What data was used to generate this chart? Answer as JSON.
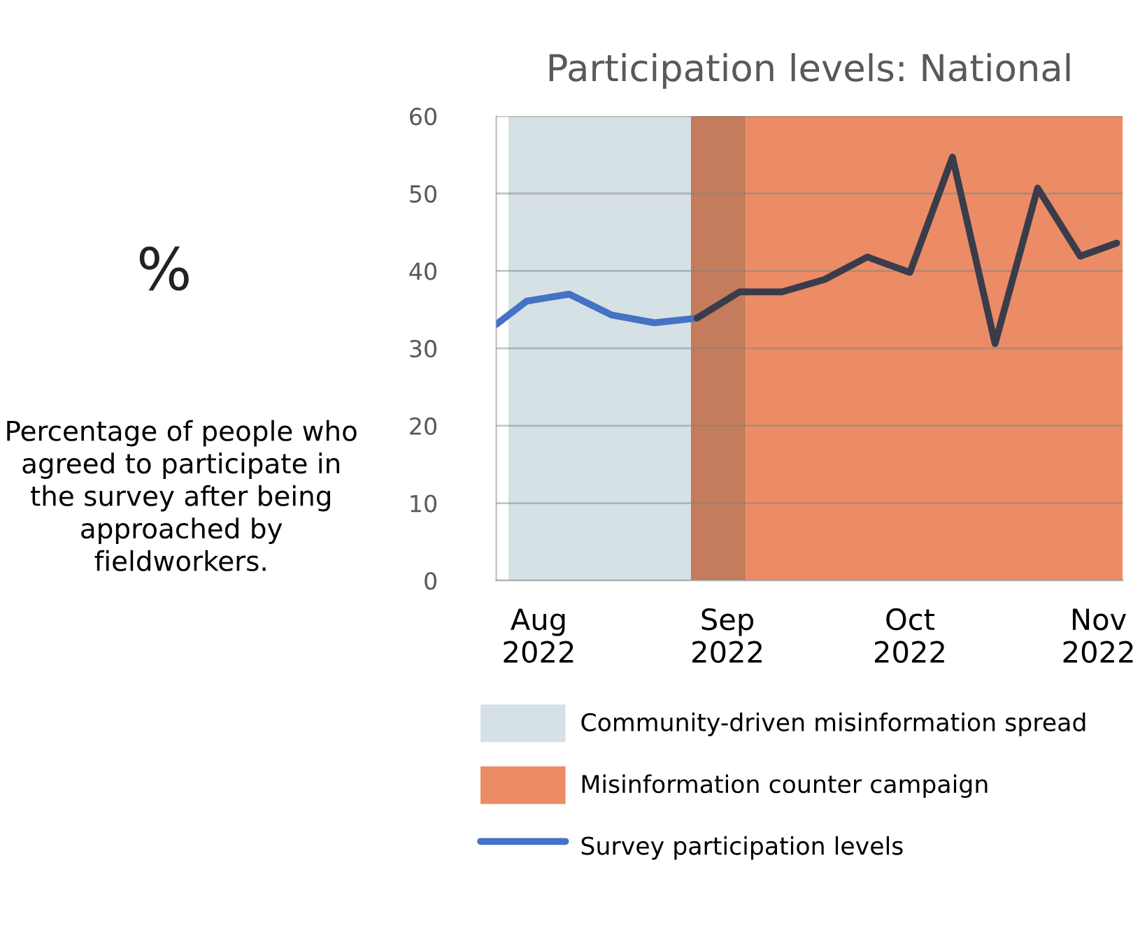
{
  "chart_data": {
    "type": "line",
    "title": "Participation levels: National",
    "ylabel": "%",
    "annotations": [
      "Percentage of people who agreed to participate in the survey after being approached by fieldworkers."
    ],
    "series": [
      {
        "name": "Survey participation levels",
        "color": "#4472c4",
        "x": [
          "2022-07-25",
          "2022-07-30",
          "2022-08-06",
          "2022-08-13",
          "2022-08-20",
          "2022-08-27"
        ],
        "values": [
          33.1,
          36.1,
          37.0,
          34.3,
          33.3,
          33.9
        ]
      },
      {
        "color": "#3a3c4a",
        "x": [
          "2022-08-27",
          "2022-09-03",
          "2022-09-10",
          "2022-09-17",
          "2022-09-24",
          "2022-10-01",
          "2022-10-08",
          "2022-10-15",
          "2022-10-22",
          "2022-10-29",
          "2022-11-04"
        ],
        "values": [
          33.9,
          37.3,
          37.3,
          38.9,
          41.8,
          39.8,
          54.7,
          30.6,
          50.7,
          41.9,
          43.6
        ]
      }
    ],
    "bands": [
      {
        "axis": "x",
        "from": "2022-07-27",
        "to": "2022-08-26",
        "label": "Community-driven misinformation spread",
        "color": "#d6e1e5"
      },
      {
        "axis": "x",
        "from": "2022-09-04",
        "to": "2022-11-05",
        "label": "Misinformation counter campaign",
        "color": "#eb8c67"
      },
      {
        "axis": "x",
        "from": "2022-08-26",
        "to": "2022-09-04",
        "color": "#c57c5c"
      }
    ],
    "xlim": [
      "2022-07-25",
      "2022-11-05"
    ],
    "xticks": [
      {
        "value": "2022-08-01",
        "label": "Aug\n2022"
      },
      {
        "value": "2022-09-01",
        "label": "Sep\n2022"
      },
      {
        "value": "2022-10-01",
        "label": "Oct\n2022"
      },
      {
        "value": "2022-11-01",
        "label": "Nov\n2022"
      }
    ],
    "ylim": [
      0,
      60
    ],
    "yticks": [
      0,
      10,
      20,
      30,
      40,
      50,
      60
    ],
    "grid": "y",
    "legend": "bottom",
    "line_style": "solid",
    "marker": "none"
  }
}
